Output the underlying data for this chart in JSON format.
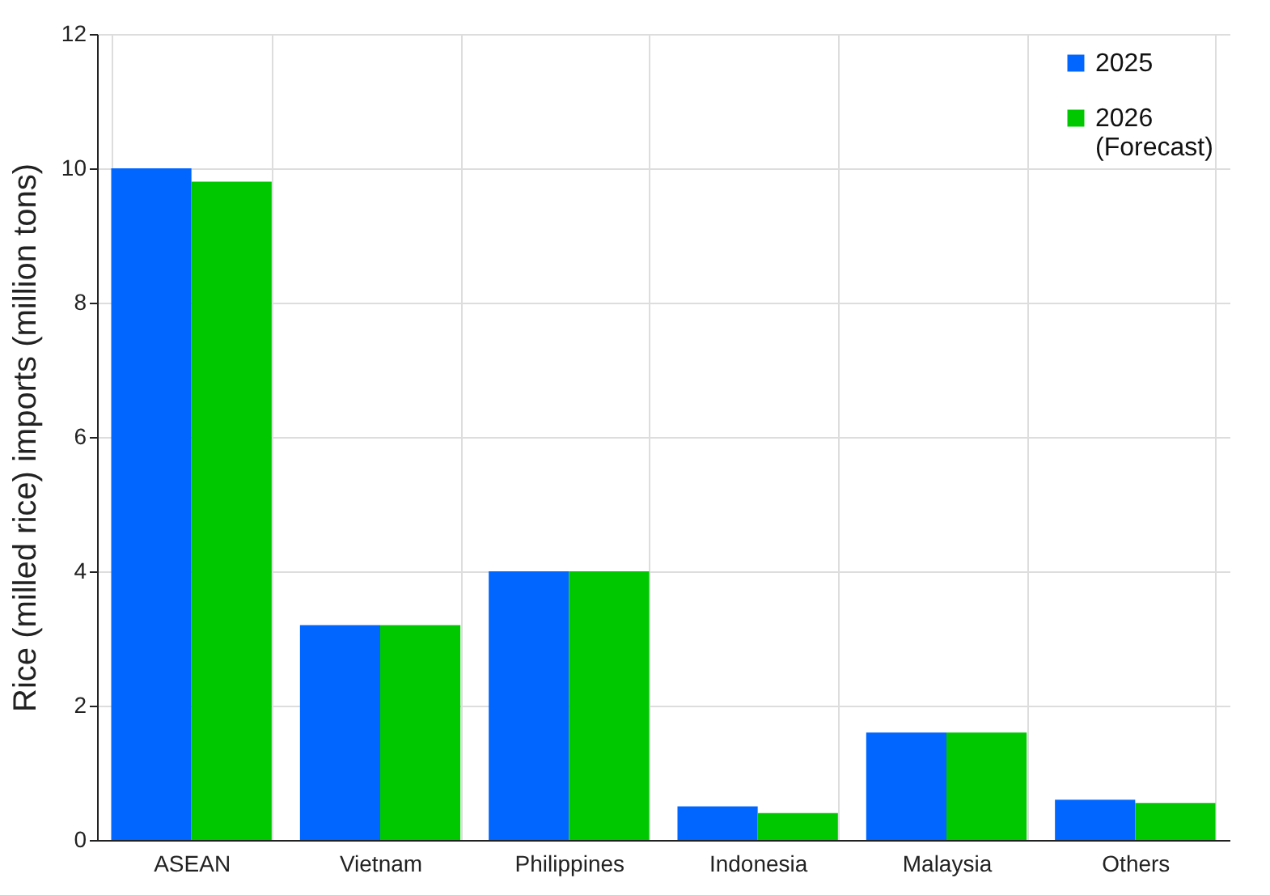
{
  "chart_data": {
    "type": "bar",
    "ylabel": "Rice (milled rice) imports (million tons)",
    "categories": [
      "ASEAN",
      "Vietnam",
      "Philippines",
      "Indonesia",
      "Malaysia",
      "Others"
    ],
    "series": [
      {
        "name": "2025",
        "color": "#0066ff",
        "values": [
          10,
          3.2,
          4,
          0.5,
          1.6,
          0.6
        ]
      },
      {
        "name": "2026 (Forecast)",
        "color": "#00c800",
        "values": [
          9.8,
          3.2,
          4,
          0.4,
          1.6,
          0.55
        ]
      }
    ],
    "ylim": [
      0,
      12
    ],
    "yticks": [
      0,
      2,
      4,
      6,
      8,
      10,
      12
    ],
    "grid": true,
    "legend": "top right"
  }
}
